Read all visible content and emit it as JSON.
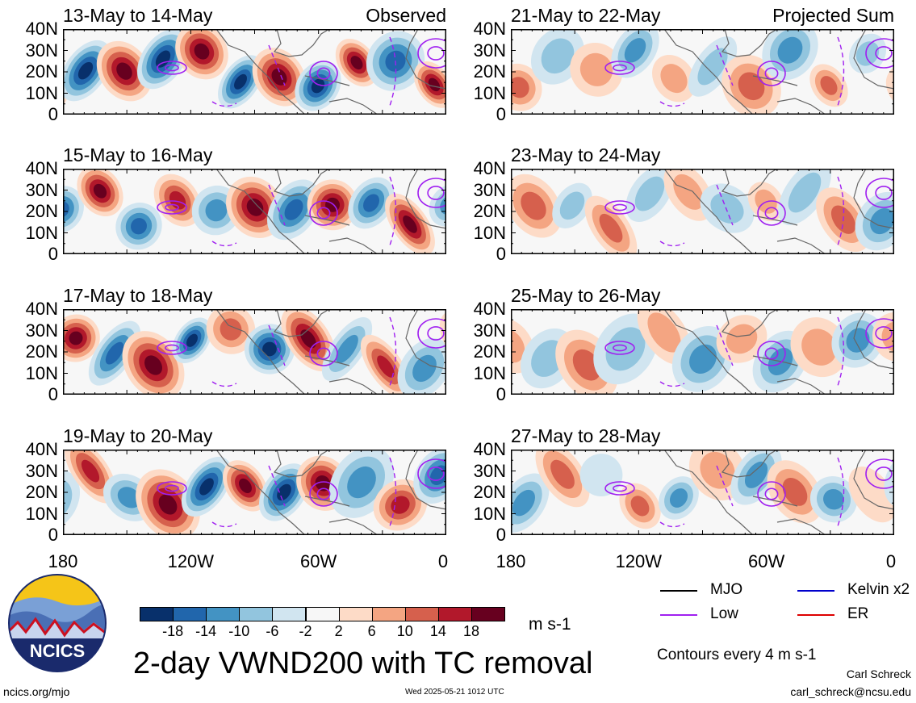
{
  "panels": [
    {
      "title": "13-May to 14-May",
      "corner": "Observed"
    },
    {
      "title": "15-May to 16-May",
      "corner": ""
    },
    {
      "title": "17-May to 18-May",
      "corner": ""
    },
    {
      "title": "19-May to 20-May",
      "corner": ""
    },
    {
      "title": "21-May to 22-May",
      "corner": "Projected Sum"
    },
    {
      "title": "23-May to 24-May",
      "corner": ""
    },
    {
      "title": "25-May to 26-May",
      "corner": ""
    },
    {
      "title": "27-May to 28-May",
      "corner": ""
    }
  ],
  "lat_ticks": [
    "40N",
    "30N",
    "20N",
    "10N",
    "0"
  ],
  "lon_ticks": [
    "180",
    "120W",
    "60W",
    "0"
  ],
  "colorbar": {
    "ticks": [
      "-18",
      "-14",
      "-10",
      "-6",
      "-2",
      "2",
      "6",
      "10",
      "14",
      "18"
    ],
    "units": "m s-1",
    "colors": [
      "#08306b",
      "#2166ac",
      "#4393c3",
      "#92c5de",
      "#d1e5f0",
      "#f7f7f7",
      "#fddbc7",
      "#f4a582",
      "#d6604d",
      "#b2182b",
      "#67001f"
    ]
  },
  "legend": [
    {
      "label": "MJO",
      "color": "#000000"
    },
    {
      "label": "Kelvin x2",
      "color": "#0000cc"
    },
    {
      "label": "Low",
      "color": "#a020f0"
    },
    {
      "label": "ER",
      "color": "#dd0000"
    }
  ],
  "contours_note": "Contours every 4 m s-1",
  "main_title": "2-day VWND200 with TC removal",
  "logo_text": "NCICS",
  "footer": {
    "url": "ncics.org/mjo",
    "timestamp": "Wed 2025-05-21 1012 UTC",
    "author": "Carl Schreck",
    "email": "carl_schreck@ncsu.edu"
  }
}
